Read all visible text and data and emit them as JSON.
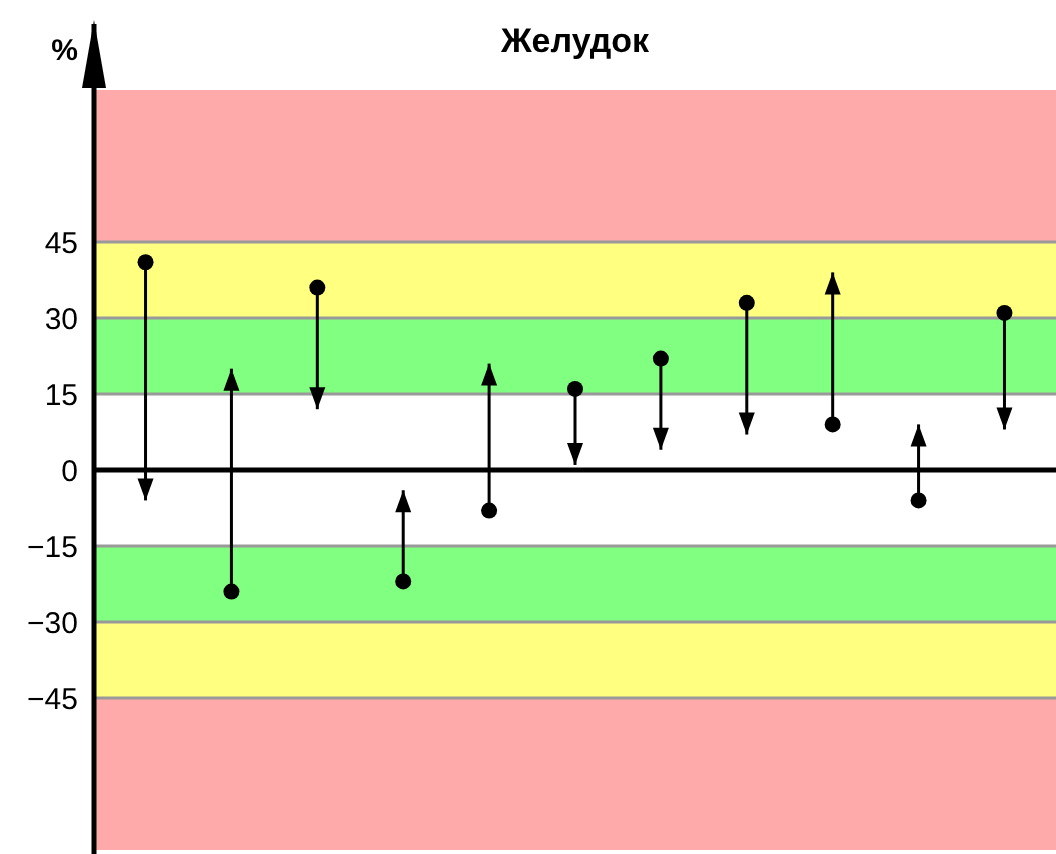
{
  "chart_data": {
    "type": "bar",
    "title": "Желудок",
    "ylabel": "%",
    "categories": [
      null,
      null,
      null,
      null,
      null,
      null,
      null,
      null,
      null,
      null,
      null
    ],
    "base": [
      41,
      -24,
      36,
      -22,
      -8,
      16,
      22,
      33,
      9,
      -6,
      31
    ],
    "values": [
      -47,
      44,
      -24,
      18,
      29,
      -15,
      -18,
      -26,
      30,
      15,
      -23
    ],
    "color": "#000000",
    "grid": "y",
    "ylim": [
      -75,
      75
    ],
    "yticks": [
      {
        "value": 45,
        "label": "45"
      },
      {
        "value": 30,
        "label": "30"
      },
      {
        "value": 15,
        "label": "15"
      },
      {
        "value": 0,
        "label": "0"
      },
      {
        "value": -15,
        "label": "−15"
      },
      {
        "value": -30,
        "label": "−30"
      },
      {
        "value": -45,
        "label": "−45"
      }
    ],
    "bands": [
      {
        "axis": "y",
        "from": 45,
        "to": 75,
        "color": "#ffaaaa"
      },
      {
        "axis": "y",
        "from": 30,
        "to": 45,
        "color": "#ffff80"
      },
      {
        "axis": "y",
        "from": 15,
        "to": 30,
        "color": "#80ff80"
      },
      {
        "axis": "y",
        "from": -30,
        "to": -15,
        "color": "#80ff80"
      },
      {
        "axis": "y",
        "from": -45,
        "to": -30,
        "color": "#ffff80"
      },
      {
        "axis": "y",
        "from": -75,
        "to": -45,
        "color": "#ffaaaa"
      }
    ]
  }
}
